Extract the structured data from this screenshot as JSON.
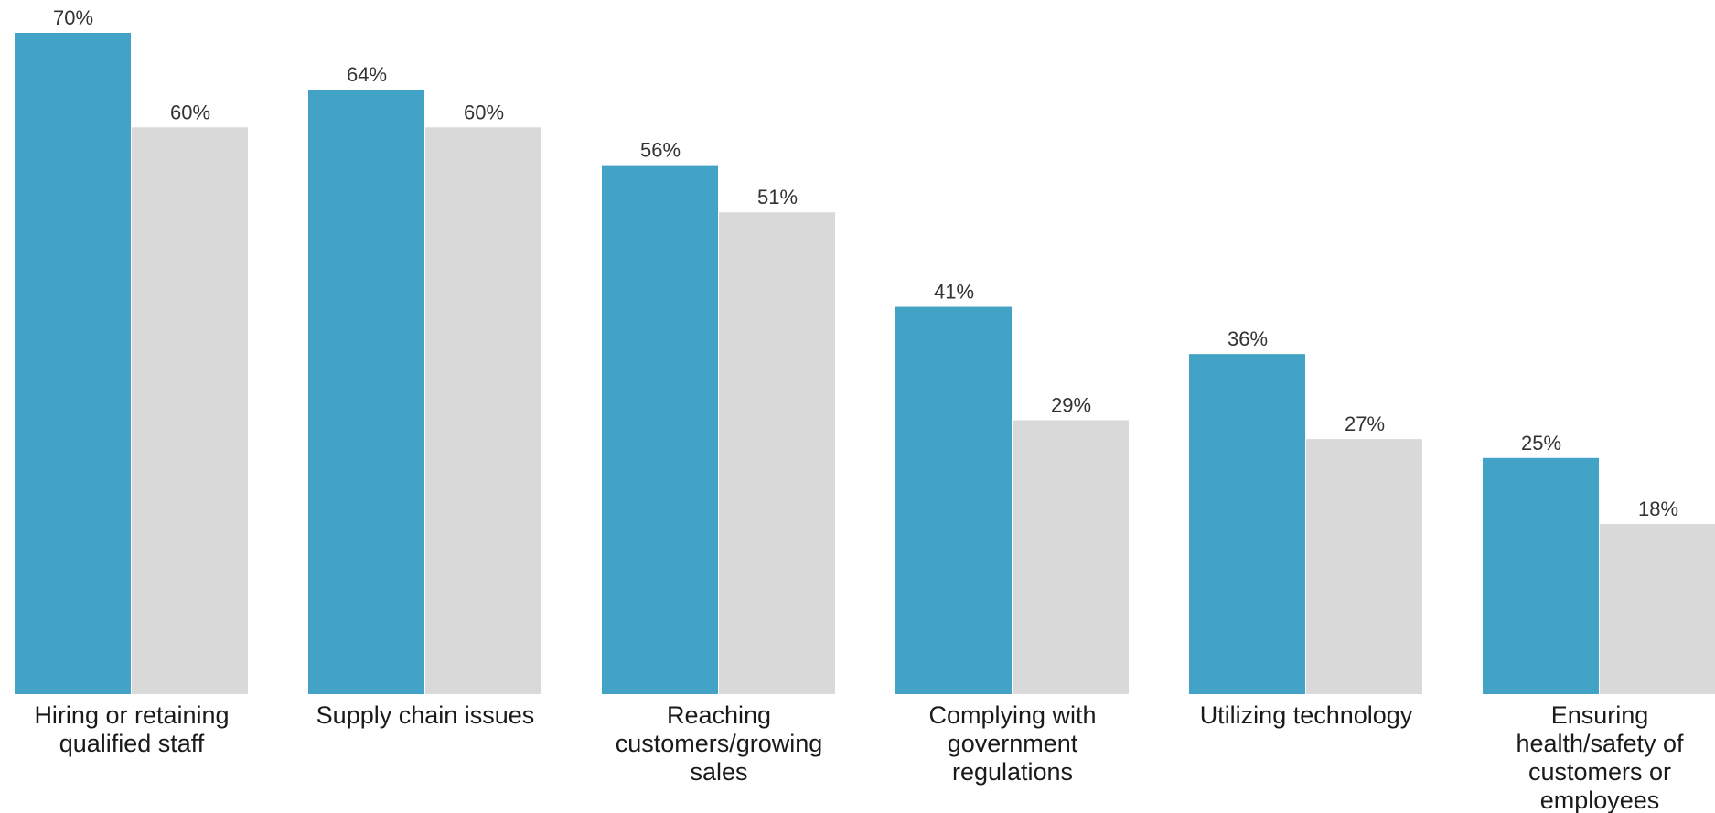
{
  "chart_data": {
    "type": "bar",
    "categories": [
      [
        "Hiring or retaining",
        "qualified staff"
      ],
      [
        "Supply chain issues"
      ],
      [
        "Reaching",
        "customers/growing",
        "sales"
      ],
      [
        "Complying with",
        "government",
        "regulations"
      ],
      [
        "Utilizing technology"
      ],
      [
        "Ensuring",
        "health/safety of",
        "customers or",
        "employees"
      ]
    ],
    "series": [
      {
        "values": [
          70,
          64,
          56,
          41,
          36,
          25
        ],
        "data_labels": [
          "70%",
          "64%",
          "56%",
          "41%",
          "36%",
          "25%"
        ]
      },
      {
        "values": [
          60,
          60,
          51,
          29,
          27,
          18
        ],
        "data_labels": [
          "60%",
          "60%",
          "51%",
          "29%",
          "27%",
          "18%"
        ]
      }
    ],
    "ylim": [
      0,
      70
    ],
    "grid": false,
    "legend": "none",
    "colors": [
      "#43a3c7",
      "#d9d9d9"
    ]
  }
}
